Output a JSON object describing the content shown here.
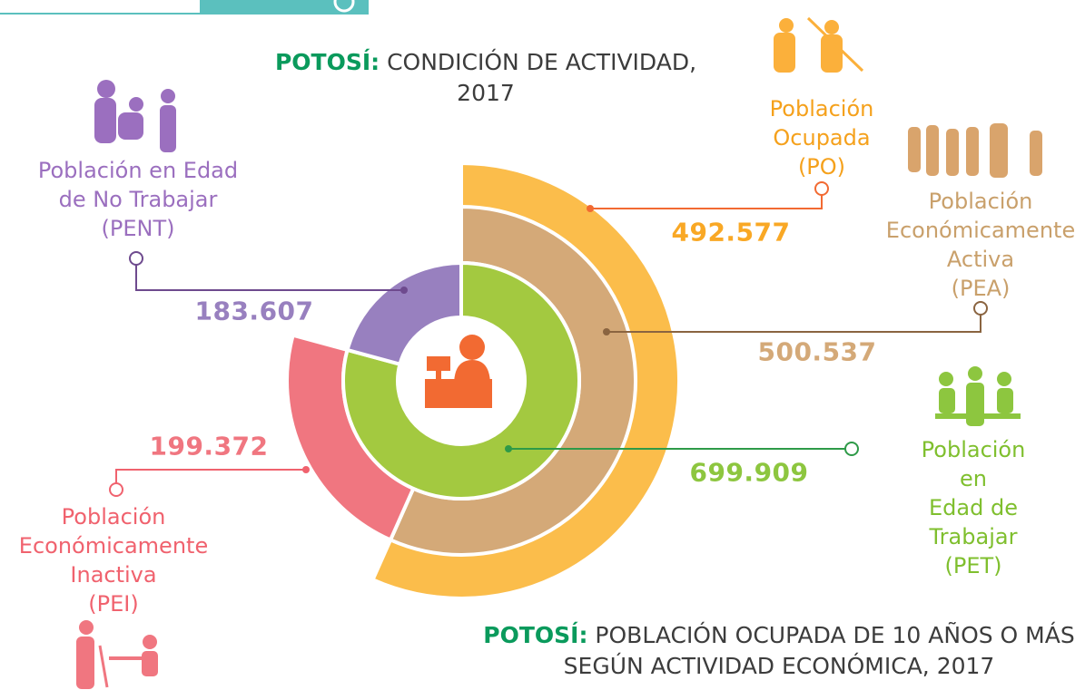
{
  "chart_data": {
    "type": "sunburst",
    "title_highlight": "POTOSÍ:",
    "title": "CONDICIÓN DE ACTIVIDAD,\n2017",
    "rings": [
      {
        "categories": [
          "Población en\nEdad de Trabajar\n(PET)",
          "Población en Edad\nde No Trabajar\n(PENT)"
        ],
        "values": [
          699909,
          183607
        ],
        "value_labels": [
          "699.909",
          "183.607"
        ],
        "colors": [
          "#a3c940",
          "#9880bf"
        ]
      },
      {
        "categories": [
          "Población\nEconómicamente\nActiva\n(PEA)",
          "Población\nEconómicamente\nInactiva\n(PEI)"
        ],
        "values": [
          500537,
          199372
        ],
        "value_labels": [
          "500.537",
          "199.372"
        ],
        "colors": [
          "#d4a978",
          "#f07680"
        ]
      },
      {
        "categories": [
          "Población\nOcupada\n(PO)"
        ],
        "values": [
          492577
        ],
        "value_labels": [
          "492.577"
        ],
        "colors": [
          "#fbbd4b"
        ]
      }
    ]
  },
  "next_section": {
    "title_highlight": "POTOSÍ:",
    "title": "POBLACIÓN OCUPADA DE 10 AÑOS O MÁS\nSEGÚN ACTIVIDAD ECONÓMICA, 2017"
  }
}
